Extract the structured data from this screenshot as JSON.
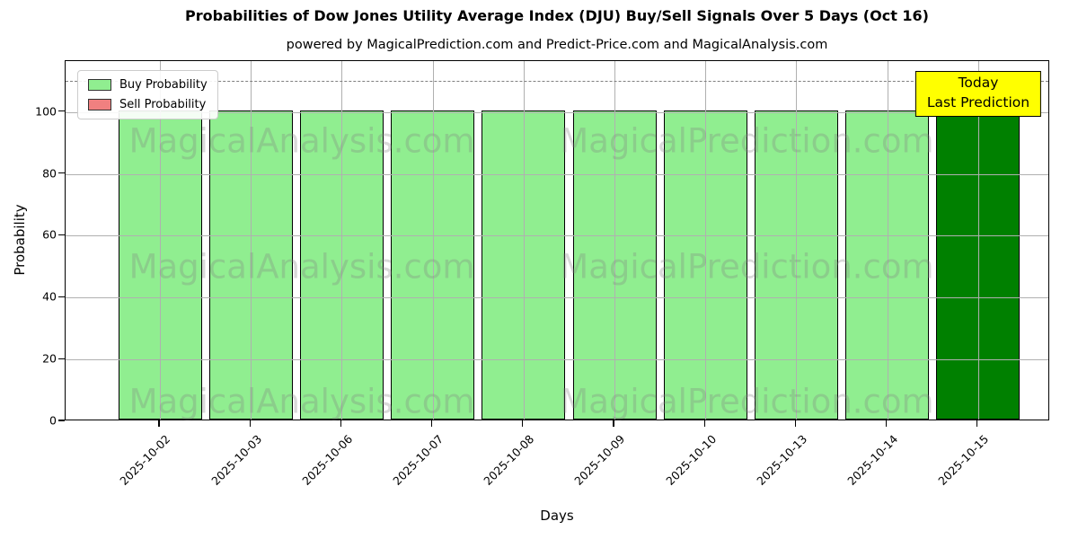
{
  "title": "Probabilities of Dow Jones Utility Average Index (DJU) Buy/Sell Signals Over 5 Days (Oct 16)",
  "subtitle": "powered by MagicalPrediction.com and Predict-Price.com and MagicalAnalysis.com",
  "chart_data": {
    "type": "bar",
    "title": "Probabilities of Dow Jones Utility Average Index (DJU) Buy/Sell Signals Over 5 Days (Oct 16)",
    "subtitle": "powered by MagicalPrediction.com and Predict-Price.com and MagicalAnalysis.com",
    "xlabel": "Days",
    "ylabel": "Probability",
    "categories": [
      "2025-10-02",
      "2025-10-03",
      "2025-10-06",
      "2025-10-07",
      "2025-10-08",
      "2025-10-09",
      "2025-10-10",
      "2025-10-13",
      "2025-10-14",
      "2025-10-15"
    ],
    "series": [
      {
        "name": "Buy Probability",
        "color": "#90EE90",
        "values": [
          100,
          100,
          100,
          100,
          100,
          100,
          100,
          100,
          100,
          100
        ]
      },
      {
        "name": "Sell Probability",
        "color": "#F08080",
        "values": [
          0,
          0,
          0,
          0,
          0,
          0,
          0,
          0,
          0,
          0
        ]
      }
    ],
    "today_bar": {
      "category": "2025-10-15",
      "color": "#008000"
    },
    "bar_edge_color": "#000000",
    "yticks": [
      0,
      20,
      40,
      60,
      80,
      100
    ],
    "ylim": [
      0,
      116.5
    ],
    "dashed_line_y": 110,
    "grid": true,
    "legend_position": "upper left",
    "annotation": {
      "line1": "Today",
      "line2": "Last Prediction",
      "bg_color": "#FFFF00"
    },
    "watermarks": [
      "MagicalAnalysis.com",
      "MagicalPrediction.com"
    ]
  }
}
